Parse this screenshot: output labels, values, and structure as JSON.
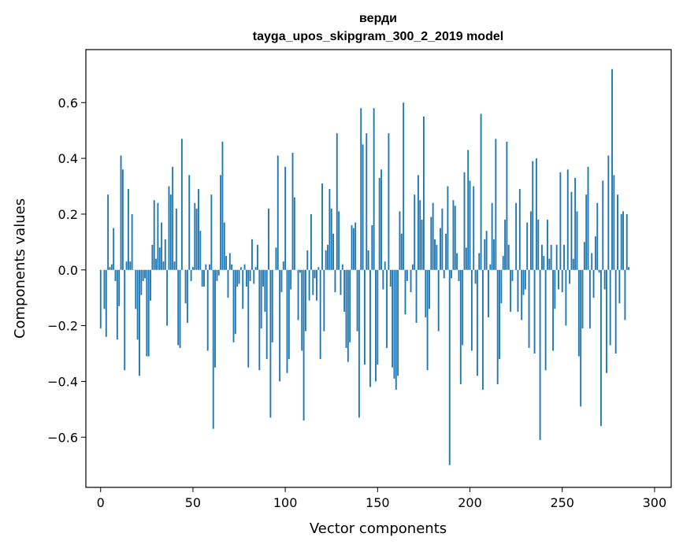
{
  "chart_data": {
    "type": "bar",
    "title": "верди",
    "subtitle": "tayga_upos_skipgram_300_2_2019 model",
    "xlabel": "Vector components",
    "ylabel": "Components values",
    "xlim": [
      -8,
      309
    ],
    "ylim": [
      -0.78,
      0.79
    ],
    "xticks": [
      0,
      50,
      100,
      150,
      200,
      250,
      300
    ],
    "xtick_labels": [
      "0",
      "50",
      "100",
      "150",
      "200",
      "250",
      "300"
    ],
    "yticks": [
      -0.6,
      -0.4,
      -0.2,
      0.0,
      0.2,
      0.4,
      0.6
    ],
    "ytick_labels": [
      "−0.6",
      "−0.4",
      "−0.2",
      "0.0",
      "0.2",
      "0.4",
      "0.6"
    ],
    "color": "#1f77b4",
    "values": [
      -0.21,
      0.0,
      -0.14,
      -0.24,
      0.27,
      0.01,
      0.02,
      0.15,
      -0.04,
      -0.25,
      -0.13,
      0.41,
      0.36,
      -0.36,
      0.03,
      0.29,
      0.03,
      0.2,
      0.0,
      -0.14,
      -0.25,
      -0.38,
      -0.09,
      -0.04,
      -0.03,
      -0.31,
      -0.31,
      -0.11,
      0.09,
      0.25,
      0.04,
      0.24,
      0.08,
      0.17,
      0.03,
      0.11,
      -0.2,
      0.3,
      0.27,
      0.37,
      0.03,
      0.22,
      -0.27,
      -0.28,
      0.47,
      0.0,
      -0.12,
      -0.19,
      0.34,
      -0.04,
      0.01,
      0.24,
      0.22,
      0.29,
      0.14,
      -0.06,
      -0.06,
      0.02,
      -0.29,
      0.02,
      0.27,
      -0.57,
      -0.35,
      -0.04,
      -0.02,
      0.34,
      0.46,
      0.17,
      0.05,
      -0.1,
      0.06,
      0.02,
      -0.26,
      -0.23,
      -0.06,
      -0.05,
      0.01,
      -0.14,
      0.02,
      -0.06,
      -0.35,
      -0.04,
      0.11,
      -0.05,
      0.01,
      0.09,
      -0.36,
      -0.21,
      -0.06,
      -0.15,
      -0.32,
      0.22,
      -0.53,
      -0.26,
      0.0,
      0.08,
      0.41,
      -0.4,
      -0.08,
      0.03,
      0.37,
      -0.37,
      -0.32,
      -0.07,
      0.42,
      0.26,
      0.0,
      -0.18,
      -0.01,
      -0.29,
      -0.54,
      -0.22,
      0.07,
      -0.11,
      0.2,
      -0.09,
      -0.03,
      -0.11,
      0.01,
      -0.32,
      0.31,
      -0.22,
      0.07,
      0.09,
      0.29,
      0.22,
      0.13,
      -0.08,
      0.49,
      0.21,
      -0.09,
      0.02,
      -0.15,
      -0.28,
      -0.33,
      -0.26,
      0.16,
      0.15,
      0.17,
      -0.22,
      -0.53,
      0.58,
      0.45,
      -0.34,
      0.49,
      0.07,
      -0.42,
      0.16,
      0.58,
      -0.4,
      -0.34,
      0.33,
      0.36,
      -0.07,
      0.03,
      -0.28,
      0.49,
      -0.06,
      -0.35,
      -0.39,
      -0.43,
      -0.38,
      0.21,
      0.13,
      0.6,
      -0.16,
      -0.04,
      0.0,
      -0.08,
      0.02,
      0.27,
      -0.19,
      0.34,
      0.25,
      0.18,
      0.55,
      -0.17,
      -0.36,
      -0.14,
      0.19,
      0.24,
      0.11,
      0.09,
      -0.22,
      0.15,
      0.22,
      -0.03,
      0.13,
      0.3,
      -0.7,
      -0.03,
      0.25,
      0.23,
      0.06,
      -0.04,
      -0.41,
      -0.27,
      0.35,
      0.08,
      0.43,
      0.32,
      -0.29,
      0.3,
      -0.05,
      -0.38,
      0.06,
      0.56,
      -0.43,
      0.11,
      0.14,
      -0.17,
      0.02,
      0.24,
      0.11,
      0.47,
      -0.41,
      -0.32,
      -0.12,
      0.05,
      0.18,
      0.46,
      0.09,
      -0.15,
      -0.04,
      0.0,
      0.24,
      -0.15,
      0.29,
      -0.18,
      -0.09,
      -0.07,
      0.17,
      -0.28,
      0.21,
      0.39,
      -0.3,
      0.4,
      0.18,
      -0.61,
      0.09,
      0.05,
      -0.36,
      0.18,
      0.04,
      0.09,
      -0.29,
      -0.14,
      0.09,
      -0.07,
      0.35,
      -0.08,
      0.09,
      -0.2,
      0.36,
      -0.05,
      0.28,
      0.04,
      0.33,
      0.21,
      -0.31,
      -0.49,
      -0.21,
      0.1,
      0.27,
      0.37,
      -0.21,
      0.06,
      -0.1,
      0.12,
      0.24,
      -0.01,
      -0.56,
      0.32,
      -0.07,
      -0.37,
      0.41,
      -0.27,
      0.72,
      0.34,
      -0.3,
      0.27,
      -0.12,
      0.2,
      0.21,
      -0.18,
      0.2,
      0.01
    ]
  }
}
